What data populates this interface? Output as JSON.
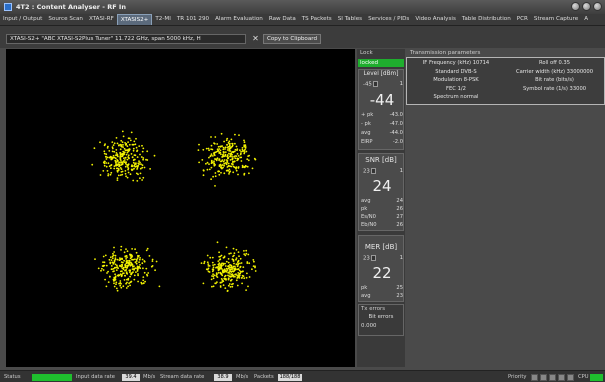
{
  "window": {
    "title": "4T2 : Content Analyser - RF In"
  },
  "tabs": [
    {
      "label": "Input / Output",
      "active": false
    },
    {
      "label": "Source Scan",
      "active": false
    },
    {
      "label": "XTASI-RF",
      "active": false
    },
    {
      "label": "XTASIS2+",
      "active": true
    },
    {
      "label": "T2-MI",
      "active": false
    },
    {
      "label": "TR 101 290",
      "active": false
    },
    {
      "label": "Alarm Evaluation",
      "active": false
    },
    {
      "label": "Raw Data",
      "active": false
    },
    {
      "label": "TS Packets",
      "active": false
    },
    {
      "label": "SI Tables",
      "active": false
    },
    {
      "label": "Services / PIDs",
      "active": false
    },
    {
      "label": "Video Analysis",
      "active": false
    },
    {
      "label": "Table Distribution",
      "active": false
    },
    {
      "label": "PCR",
      "active": false
    },
    {
      "label": "Stream Capture",
      "active": false
    },
    {
      "label": "A",
      "active": false
    }
  ],
  "toolbar": {
    "source_value": "XTASI-S2+ \"ABC XTASI-S2Plus Tuner\" 11.722 GHz, span 5000 kHz, H",
    "copy_label": "Copy to Clipboard",
    "tool_icon": "crossed-tools-icon"
  },
  "measurements": {
    "lock_header": "Lock",
    "lock_status": "locked",
    "level": {
      "title": "Level [dBm]",
      "spin_value": "-45",
      "spin_right": "1",
      "big": "-44",
      "rows": [
        {
          "label": "+ pk",
          "value": "-43.0"
        },
        {
          "label": "- pk",
          "value": "-47.0"
        },
        {
          "label": "avg",
          "value": "-44.0"
        },
        {
          "label": "EIRP",
          "value": "-2.0"
        }
      ]
    },
    "snr": {
      "title": "SNR [dB]",
      "spin_value": "23",
      "spin_right": "1",
      "big": "24",
      "rows": [
        {
          "label": "avg",
          "value": "24"
        },
        {
          "label": "pk",
          "value": "26"
        },
        {
          "label": "Es/N0",
          "value": "27"
        },
        {
          "label": "Eb/N0",
          "value": "26"
        }
      ]
    },
    "mer": {
      "title": "MER [dB]",
      "spin_value": "23",
      "spin_right": "1",
      "big": "22",
      "rows": [
        {
          "label": "pk",
          "value": "25"
        },
        {
          "label": "avg",
          "value": "23"
        }
      ]
    },
    "tx_errors": {
      "header": "Tx errors",
      "label": "Bit errors",
      "value": "0.000"
    }
  },
  "transmission": {
    "header": "Transmission parameters",
    "rows": [
      {
        "c1": "IF Frequency (kHz) 10714",
        "c2": "Roll off 0.35"
      },
      {
        "c1": "Standard DVB-S",
        "c2": "Carrier width (kHz) 33000000"
      },
      {
        "c1": "Modulation 8-PSK",
        "c2": "Bit rate (bits/s)"
      },
      {
        "c1": "FEC 1/2",
        "c2": "Symbol rate (1/s) 33000"
      },
      {
        "c1": "Spectrum normal",
        "c2": ""
      }
    ]
  },
  "status": {
    "status_label": "Status",
    "input_rate_label": "Input data rate",
    "input_rate_value": "39.4",
    "input_rate_unit": "Mb/s",
    "stream_rate_label": "Stream data rate",
    "stream_rate_value": "38.9",
    "stream_rate_unit": "Mb/s",
    "packets_label": "Packets",
    "packets_value": "188/188",
    "priority_label": "Priority",
    "cpu_label": "CPU"
  },
  "colors": {
    "accent": "#1fae2e",
    "points": "#f2f200",
    "active_tab": "#5b6a7c"
  }
}
